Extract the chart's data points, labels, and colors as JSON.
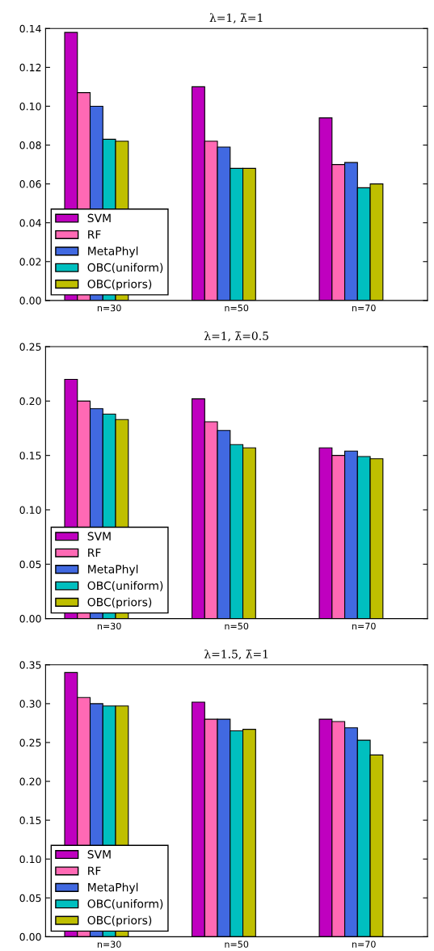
{
  "chart_data": [
    {
      "type": "bar",
      "title": "λ=1, λ̄=1",
      "categories": [
        "n=30",
        "n=50",
        "n=70"
      ],
      "legend": "lower left",
      "grid": false,
      "ylim": [
        0,
        0.14
      ],
      "yticks": [
        {
          "value": 0,
          "label": "0.00"
        },
        {
          "value": 0.02,
          "label": "0.02"
        },
        {
          "value": 0.04,
          "label": "0.04"
        },
        {
          "value": 0.06,
          "label": "0.06"
        },
        {
          "value": 0.08,
          "label": "0.08"
        },
        {
          "value": 0.1,
          "label": "0.10"
        },
        {
          "value": 0.12,
          "label": "0.12"
        },
        {
          "value": 0.14,
          "label": "0.14"
        }
      ],
      "series": [
        {
          "name": "SVM",
          "color": "#bf00bf",
          "values": [
            0.138,
            0.11,
            0.094
          ]
        },
        {
          "name": "RF",
          "color": "#ff69b4",
          "values": [
            0.107,
            0.082,
            0.07
          ]
        },
        {
          "name": "MetaPhyl",
          "color": "#4169e1",
          "values": [
            0.1,
            0.079,
            0.071
          ]
        },
        {
          "name": "OBC(uniform)",
          "color": "#00bfbf",
          "values": [
            0.083,
            0.068,
            0.058
          ]
        },
        {
          "name": "OBC(priors)",
          "color": "#bfbf00",
          "values": [
            0.082,
            0.068,
            0.06
          ]
        }
      ]
    },
    {
      "type": "bar",
      "title": "λ=1, λ̄=0.5",
      "categories": [
        "n=30",
        "n=50",
        "n=70"
      ],
      "legend": "lower left",
      "grid": false,
      "ylim": [
        0,
        0.25
      ],
      "yticks": [
        {
          "value": 0,
          "label": "0.00"
        },
        {
          "value": 0.05,
          "label": "0.05"
        },
        {
          "value": 0.1,
          "label": "0.10"
        },
        {
          "value": 0.15,
          "label": "0.15"
        },
        {
          "value": 0.2,
          "label": "0.20"
        },
        {
          "value": 0.25,
          "label": "0.25"
        }
      ],
      "series": [
        {
          "name": "SVM",
          "color": "#bf00bf",
          "values": [
            0.22,
            0.202,
            0.157
          ]
        },
        {
          "name": "RF",
          "color": "#ff69b4",
          "values": [
            0.2,
            0.181,
            0.15
          ]
        },
        {
          "name": "MetaPhyl",
          "color": "#4169e1",
          "values": [
            0.193,
            0.173,
            0.154
          ]
        },
        {
          "name": "OBC(uniform)",
          "color": "#00bfbf",
          "values": [
            0.188,
            0.16,
            0.149
          ]
        },
        {
          "name": "OBC(priors)",
          "color": "#bfbf00",
          "values": [
            0.183,
            0.157,
            0.147
          ]
        }
      ]
    },
    {
      "type": "bar",
      "title": "λ=1.5, λ̄=1",
      "categories": [
        "n=30",
        "n=50",
        "n=70"
      ],
      "legend": "lower left",
      "grid": false,
      "ylim": [
        0,
        0.35
      ],
      "yticks": [
        {
          "value": 0,
          "label": "0.00"
        },
        {
          "value": 0.05,
          "label": "0.05"
        },
        {
          "value": 0.1,
          "label": "0.10"
        },
        {
          "value": 0.15,
          "label": "0.15"
        },
        {
          "value": 0.2,
          "label": "0.20"
        },
        {
          "value": 0.25,
          "label": "0.25"
        },
        {
          "value": 0.3,
          "label": "0.30"
        },
        {
          "value": 0.35,
          "label": "0.35"
        }
      ],
      "series": [
        {
          "name": "SVM",
          "color": "#bf00bf",
          "values": [
            0.34,
            0.302,
            0.28
          ]
        },
        {
          "name": "RF",
          "color": "#ff69b4",
          "values": [
            0.308,
            0.28,
            0.277
          ]
        },
        {
          "name": "MetaPhyl",
          "color": "#4169e1",
          "values": [
            0.3,
            0.28,
            0.269
          ]
        },
        {
          "name": "OBC(uniform)",
          "color": "#00bfbf",
          "values": [
            0.297,
            0.265,
            0.253
          ]
        },
        {
          "name": "OBC(priors)",
          "color": "#bfbf00",
          "values": [
            0.297,
            0.267,
            0.234
          ]
        }
      ]
    }
  ]
}
